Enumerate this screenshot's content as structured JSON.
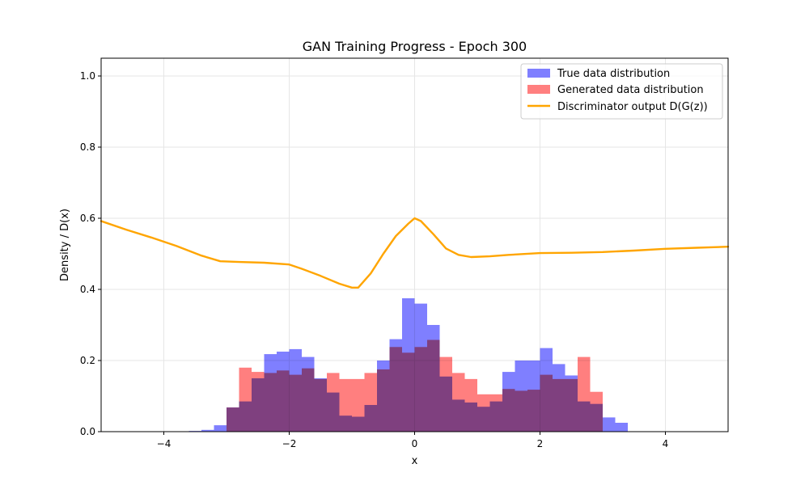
{
  "chart_data": {
    "type": "bar",
    "title": "GAN Training Progress - Epoch 300",
    "xlabel": "x",
    "ylabel": "Density / D(x)",
    "xlim": [
      -5,
      5
    ],
    "ylim": [
      0,
      1.05
    ],
    "x_ticks": [
      -4,
      -2,
      0,
      2,
      4
    ],
    "y_ticks": [
      0.0,
      0.2,
      0.4,
      0.6,
      0.8,
      1.0
    ],
    "grid": true,
    "legend_position": "top-right",
    "histograms": [
      {
        "name": "True data distribution",
        "color": "#7f7fff",
        "bin_start": -3.6,
        "bin_width": 0.2,
        "values": [
          0.002,
          0.005,
          0.018,
          0.068,
          0.085,
          0.15,
          0.218,
          0.225,
          0.232,
          0.21,
          0.15,
          0.11,
          0.045,
          0.042,
          0.075,
          0.2,
          0.26,
          0.375,
          0.36,
          0.3,
          0.155,
          0.09,
          0.082,
          0.07,
          0.085,
          0.168,
          0.2,
          0.2,
          0.235,
          0.19,
          0.158,
          0.085,
          0.078,
          0.04,
          0.025
        ]
      },
      {
        "name": "Generated data distribution",
        "color": "#ff7f7f",
        "bin_start": -3.0,
        "bin_width": 0.2,
        "values": [
          0.068,
          0.18,
          0.168,
          0.165,
          0.172,
          0.16,
          0.178,
          0.148,
          0.165,
          0.148,
          0.148,
          0.165,
          0.175,
          0.238,
          0.222,
          0.238,
          0.258,
          0.21,
          0.165,
          0.148,
          0.105,
          0.105,
          0.12,
          0.115,
          0.118,
          0.16,
          0.148,
          0.148,
          0.21,
          0.112
        ]
      }
    ],
    "series": [
      {
        "name": "Discriminator output D(G(z))",
        "color": "#ffa500",
        "x": [
          -5.0,
          -4.6,
          -4.2,
          -3.8,
          -3.4,
          -3.1,
          -2.8,
          -2.4,
          -2.0,
          -1.8,
          -1.5,
          -1.2,
          -1.0,
          -0.9,
          -0.7,
          -0.5,
          -0.3,
          -0.1,
          0.0,
          0.1,
          0.3,
          0.5,
          0.7,
          0.9,
          1.2,
          1.5,
          2.0,
          2.5,
          3.0,
          3.5,
          4.0,
          4.5,
          5.0
        ],
        "y": [
          0.592,
          0.568,
          0.546,
          0.522,
          0.495,
          0.479,
          0.477,
          0.475,
          0.47,
          0.458,
          0.438,
          0.416,
          0.405,
          0.405,
          0.445,
          0.5,
          0.55,
          0.585,
          0.6,
          0.592,
          0.555,
          0.515,
          0.497,
          0.491,
          0.493,
          0.497,
          0.502,
          0.503,
          0.505,
          0.509,
          0.514,
          0.517,
          0.52
        ]
      }
    ]
  }
}
